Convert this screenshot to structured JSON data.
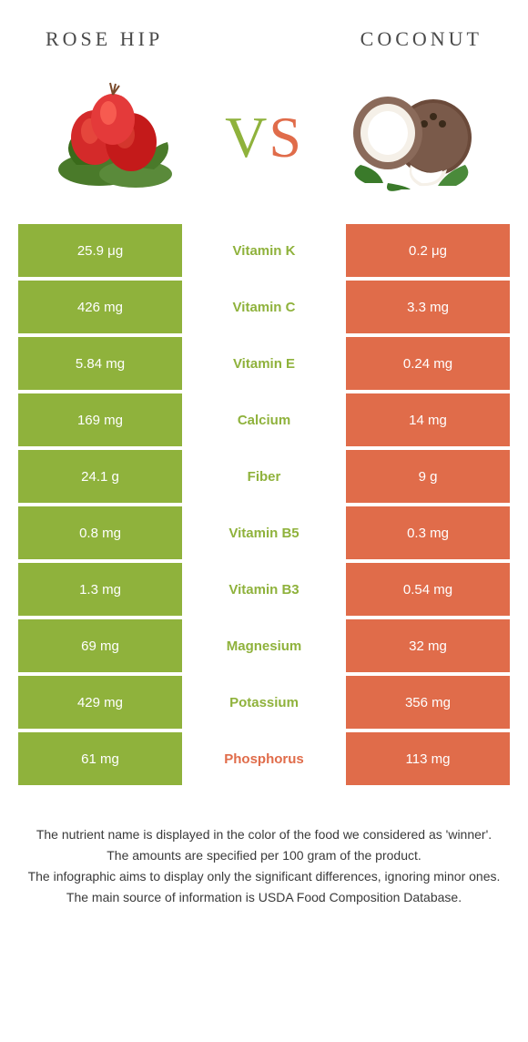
{
  "colors": {
    "left": "#8fb23c",
    "right": "#e06c4a",
    "text": "#3a3a3a"
  },
  "header": {
    "left": "Rose hip",
    "right": "Coconut",
    "vs_v": "V",
    "vs_s": "S"
  },
  "rows": [
    {
      "left": "25.9 μg",
      "mid": "Vitamin K",
      "right": "0.2 μg",
      "winner": "left"
    },
    {
      "left": "426 mg",
      "mid": "Vitamin C",
      "right": "3.3 mg",
      "winner": "left"
    },
    {
      "left": "5.84 mg",
      "mid": "Vitamin E",
      "right": "0.24 mg",
      "winner": "left"
    },
    {
      "left": "169 mg",
      "mid": "Calcium",
      "right": "14 mg",
      "winner": "left"
    },
    {
      "left": "24.1 g",
      "mid": "Fiber",
      "right": "9 g",
      "winner": "left"
    },
    {
      "left": "0.8 mg",
      "mid": "Vitamin B5",
      "right": "0.3 mg",
      "winner": "left"
    },
    {
      "left": "1.3 mg",
      "mid": "Vitamin B3",
      "right": "0.54 mg",
      "winner": "left"
    },
    {
      "left": "69 mg",
      "mid": "Magnesium",
      "right": "32 mg",
      "winner": "left"
    },
    {
      "left": "429 mg",
      "mid": "Potassium",
      "right": "356 mg",
      "winner": "left"
    },
    {
      "left": "61 mg",
      "mid": "Phosphorus",
      "right": "113 mg",
      "winner": "right"
    }
  ],
  "footnotes": [
    "The nutrient name is displayed in the color of the food we considered as 'winner'.",
    "The amounts are specified per 100 gram of the product.",
    "The infographic aims to display only the significant differences, ignoring minor ones.",
    "The main source of information is USDA Food Composition Database."
  ]
}
